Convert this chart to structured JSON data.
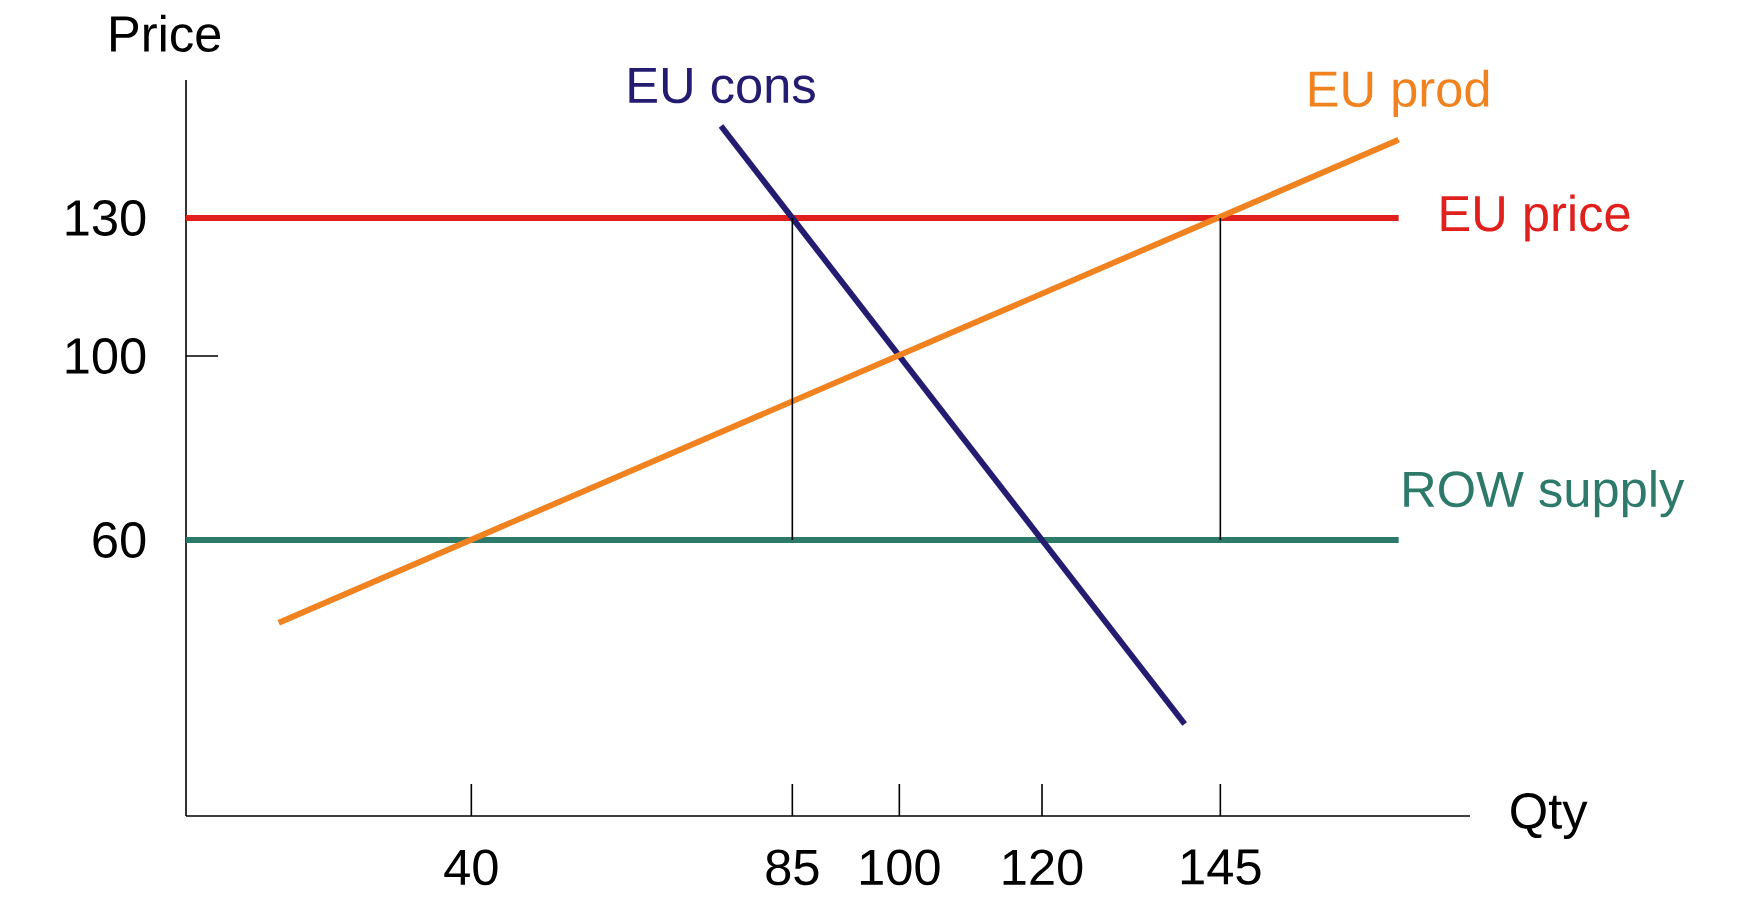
{
  "chart_data": {
    "type": "line",
    "xlabel": "Qty",
    "ylabel": "Price",
    "xlim": [
      0,
      180
    ],
    "ylim": [
      0,
      160
    ],
    "xticks": [
      40,
      85,
      100,
      120,
      145
    ],
    "yticks": [
      60,
      100,
      130
    ],
    "grid": false,
    "marker": "none",
    "line_style": "solid",
    "series": [
      {
        "name": "EU price",
        "color": "#e0201c",
        "x": [
          0,
          170
        ],
        "values": [
          130,
          130
        ]
      },
      {
        "name": "ROW supply",
        "color": "#2e7a6a",
        "x": [
          0,
          170
        ],
        "values": [
          60,
          60
        ]
      },
      {
        "name": "EU cons",
        "color": "#231c70",
        "x": [
          75,
          140
        ],
        "values": [
          150,
          20
        ]
      },
      {
        "name": "EU prod",
        "color": "#f08220",
        "x": [
          13,
          170
        ],
        "values": [
          42,
          147
        ]
      },
      {
        "color": "#000000",
        "x": [
          85,
          85
        ],
        "values": [
          60,
          130
        ]
      },
      {
        "color": "#000000",
        "x": [
          145,
          145
        ],
        "values": [
          60,
          130
        ]
      }
    ]
  }
}
